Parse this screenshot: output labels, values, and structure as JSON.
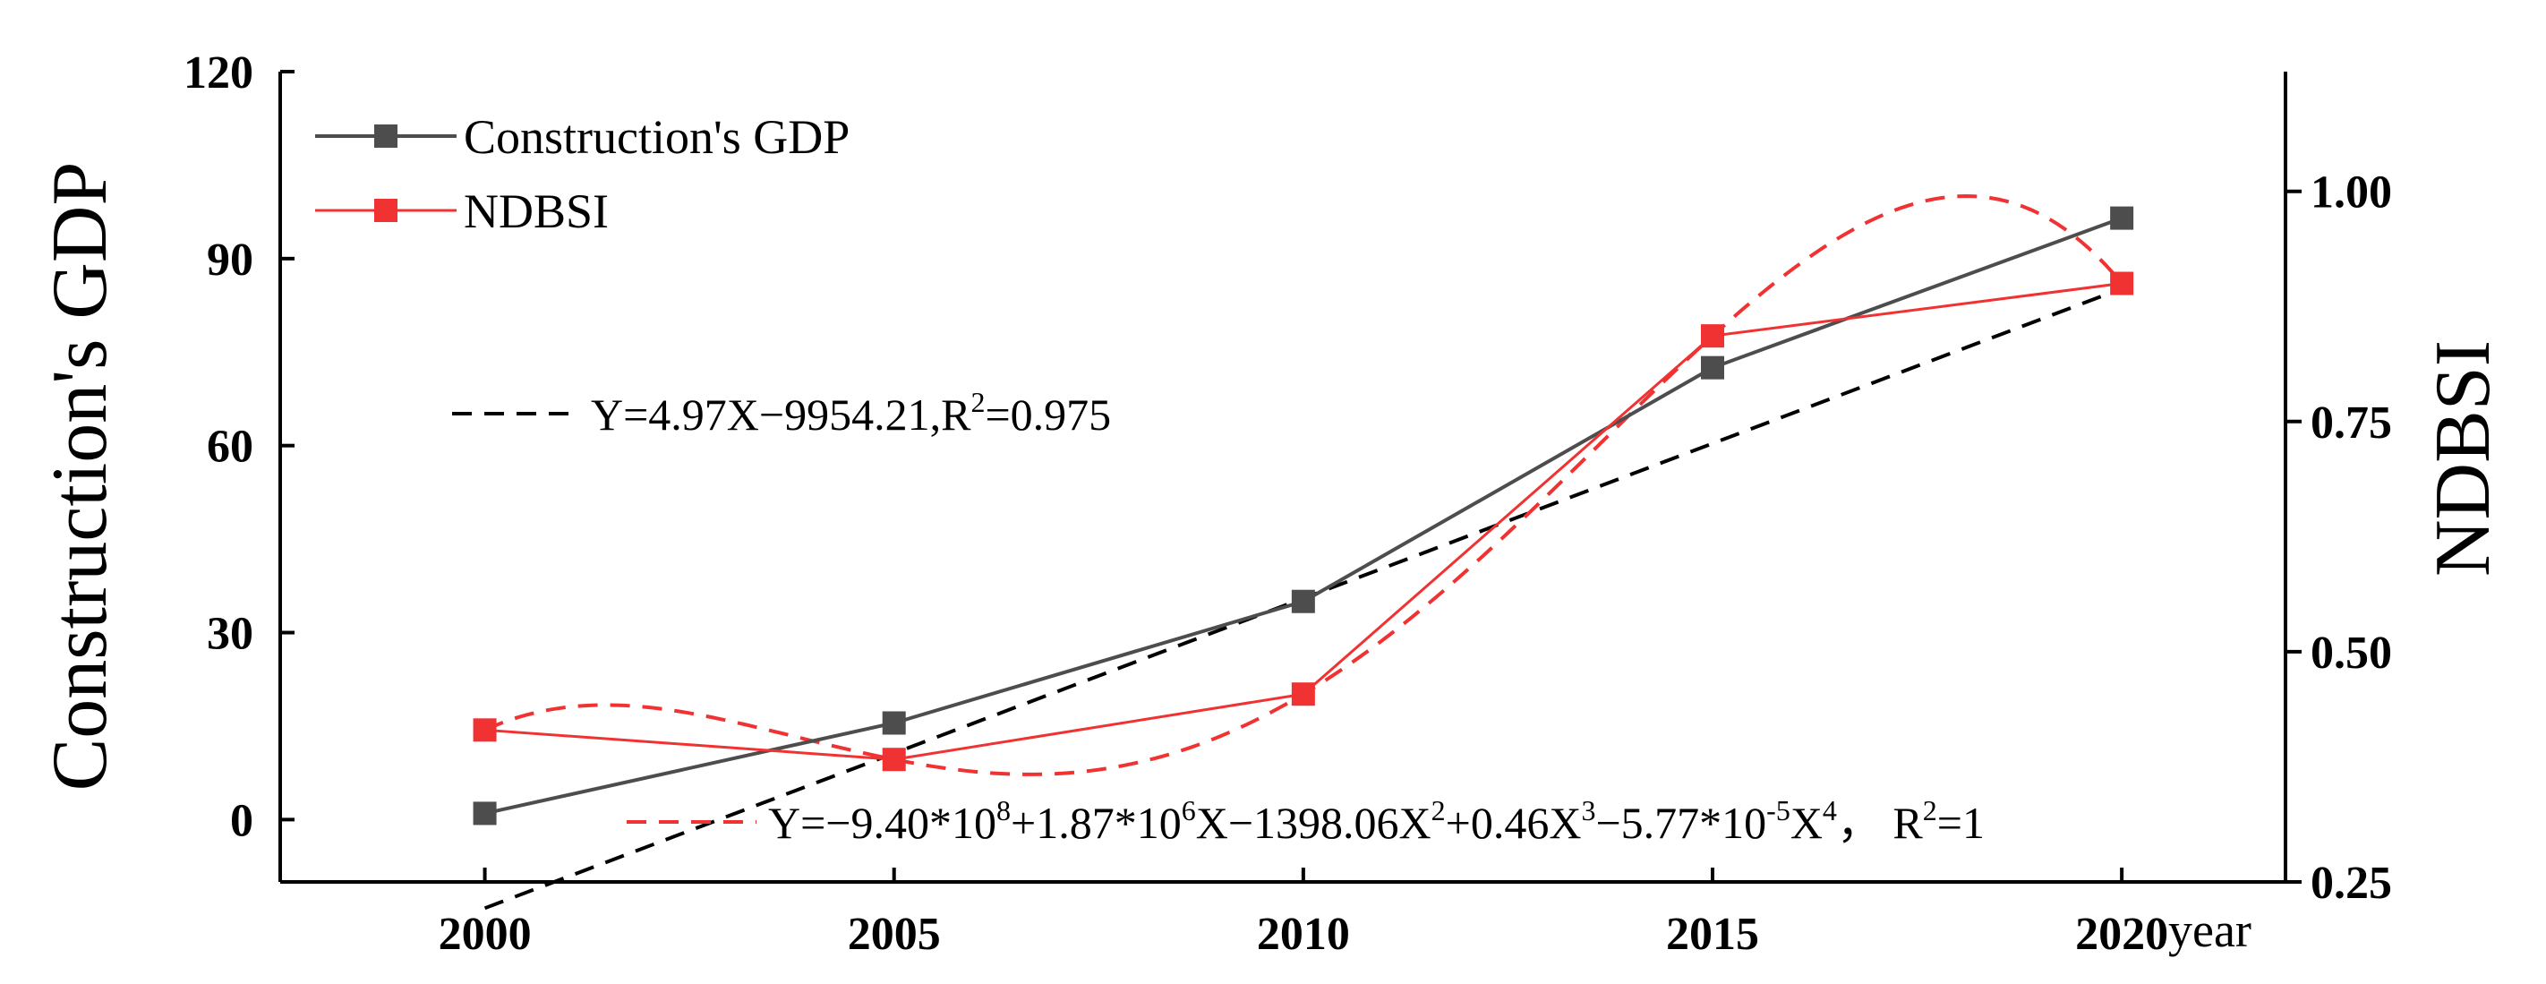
{
  "chart_data": {
    "type": "line",
    "x": [
      2000,
      2005,
      2010,
      2015,
      2020
    ],
    "xlim": [
      1997.5,
      2022
    ],
    "x_ticks": [
      "2000",
      "2005",
      "2010",
      "2015",
      "2020"
    ],
    "xlabel_unit": "year",
    "left_axis": {
      "label": "Construction's GDP",
      "ylim": [
        -10,
        120
      ],
      "ticks": [
        "0",
        "30",
        "60",
        "90",
        "120"
      ],
      "tick_values": [
        0,
        30,
        60,
        90,
        120
      ]
    },
    "right_axis": {
      "label": "NDBSI",
      "ylim": [
        0.25,
        1.13
      ],
      "ticks": [
        "0.25",
        "0.50",
        "0.75",
        "1.00"
      ],
      "tick_values": [
        0.25,
        0.5,
        0.75,
        1.0
      ]
    },
    "series": [
      {
        "name": "Construction's GDP",
        "axis": "left",
        "color": "#4d4d4d",
        "marker": "square",
        "values": [
          1,
          15.5,
          35,
          72.5,
          96.5
        ]
      },
      {
        "name": "NDBSI",
        "axis": "right",
        "color": "#f03232",
        "marker": "square",
        "values": [
          0.415,
          0.383,
          0.454,
          0.843,
          0.9
        ]
      }
    ],
    "fits": [
      {
        "name": "linear-fit",
        "axis": "left",
        "color": "#000000",
        "style": "dashed",
        "slope": 4.97,
        "intercept": -9954.21,
        "x_range": [
          2000,
          2020
        ],
        "equation_parts": {
          "main": "Y=4.97X−9954.21,R",
          "sup": "2",
          "tail": "=0.975"
        }
      },
      {
        "name": "quartic-fit",
        "axis": "right",
        "color": "#f03232",
        "style": "dashed",
        "x_range": [
          2000,
          2020
        ],
        "equation_parts": [
          {
            "t": "Y=−9.40*10"
          },
          {
            "t": "8",
            "sup": true
          },
          {
            "t": "+1.87*10"
          },
          {
            "t": "6",
            "sup": true
          },
          {
            "t": "X−1398.06X"
          },
          {
            "t": "2",
            "sup": true
          },
          {
            "t": "+0.46X"
          },
          {
            "t": "3",
            "sup": true
          },
          {
            "t": "−5.77*10"
          },
          {
            "t": "-5",
            "sup": true
          },
          {
            "t": "X"
          },
          {
            "t": "4",
            "sup": true
          },
          {
            "t": "， R"
          },
          {
            "t": "2",
            "sup": true
          },
          {
            "t": "=1"
          }
        ]
      }
    ],
    "legend": {
      "position": "top-left",
      "entries": [
        "Construction's GDP",
        "NDBSI"
      ]
    }
  }
}
